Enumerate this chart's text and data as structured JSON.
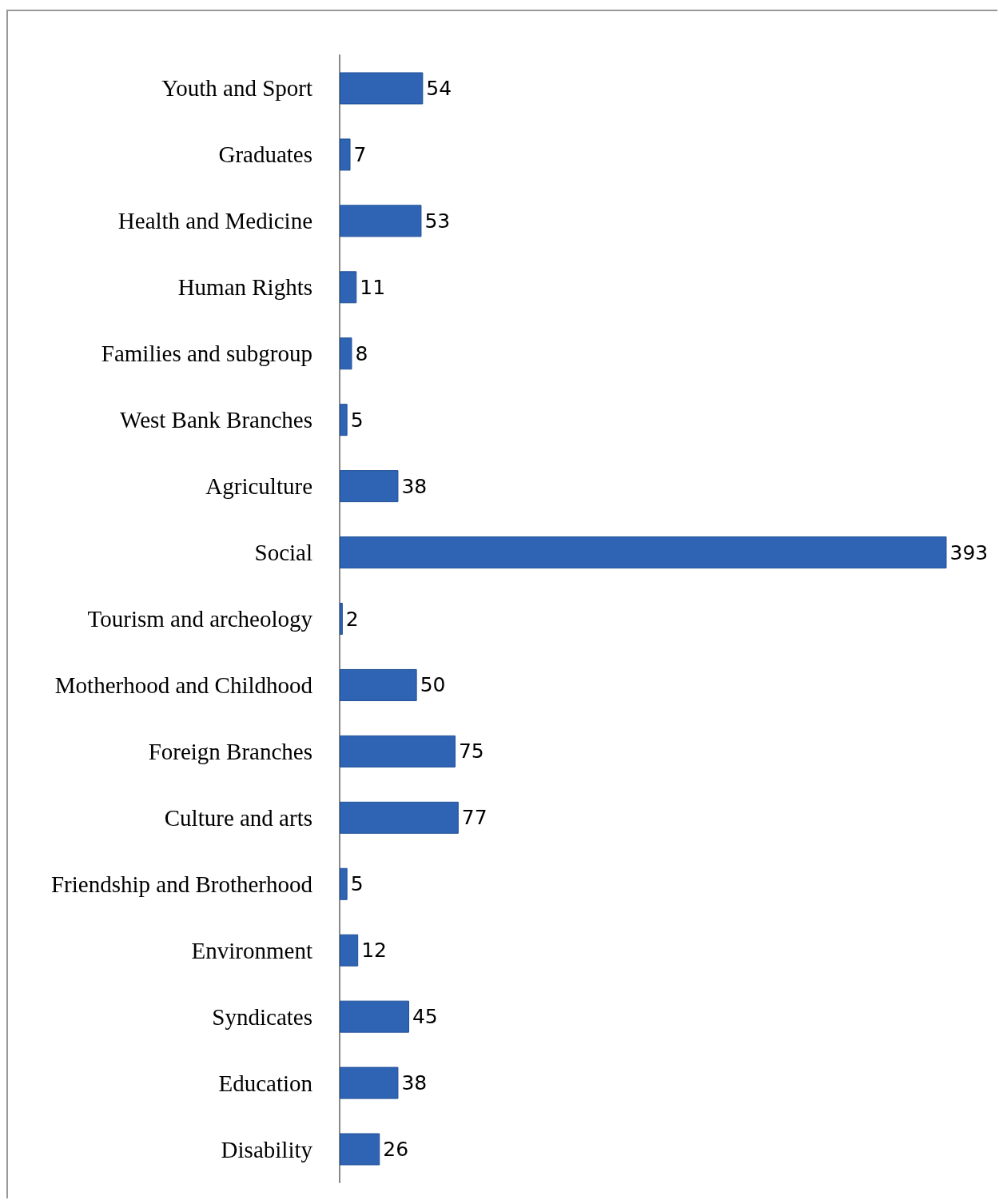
{
  "chart_data": {
    "type": "bar",
    "orientation": "horizontal",
    "categories": [
      "Youth and Sport",
      "Graduates",
      "Health and Medicine",
      "Human Rights",
      "Families and subgroup",
      "West Bank Branches",
      "Agriculture",
      "Social",
      "Tourism and archeology",
      "Motherhood and Childhood",
      "Foreign Branches",
      "Culture and arts",
      "Friendship and Brotherhood",
      "Environment",
      "Syndicates",
      "Education",
      "Disability"
    ],
    "values": [
      54,
      7,
      53,
      11,
      8,
      5,
      38,
      393,
      2,
      50,
      75,
      77,
      5,
      12,
      45,
      38,
      26
    ],
    "color": "#2f64b4",
    "data_labels": true,
    "tick_labels": "y"
  }
}
